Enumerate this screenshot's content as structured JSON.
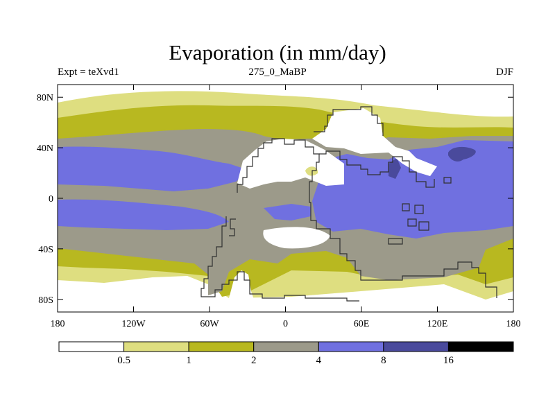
{
  "title": "Evaporation (in mm/day)",
  "left_label": "Expt = teXvd1",
  "center_label": "275_0_MaBP",
  "right_label": "DJF",
  "colors": {
    "c1": "#ffffff",
    "c2": "#dede80",
    "c3": "#b8b820",
    "c4": "#9c9a8a",
    "c5": "#7070e0",
    "c6": "#4a4a9c",
    "c7": "#000000",
    "coast": "#303030"
  },
  "chart_data": {
    "type": "contour-map",
    "variable": "Evaporation",
    "units": "mm/day",
    "experiment": "teXvd1",
    "period": "275_0_MaBP",
    "season": "DJF",
    "xlim": [
      -180,
      180
    ],
    "ylim": [
      -90,
      90
    ],
    "lat_ticks": [
      {
        "value": 80,
        "label": "80N"
      },
      {
        "value": 40,
        "label": "40N"
      },
      {
        "value": 0,
        "label": "0"
      },
      {
        "value": -40,
        "label": "40S"
      },
      {
        "value": -80,
        "label": "80S"
      }
    ],
    "lon_ticks": [
      {
        "value": -180,
        "label": "180"
      },
      {
        "value": -120,
        "label": "120W"
      },
      {
        "value": -60,
        "label": "60W"
      },
      {
        "value": 0,
        "label": "0"
      },
      {
        "value": 60,
        "label": "60E"
      },
      {
        "value": 120,
        "label": "120E"
      },
      {
        "value": 180,
        "label": "180"
      }
    ],
    "colorbar": {
      "levels": [
        "0.5",
        "1",
        "2",
        "4",
        "8",
        "16"
      ]
    }
  }
}
